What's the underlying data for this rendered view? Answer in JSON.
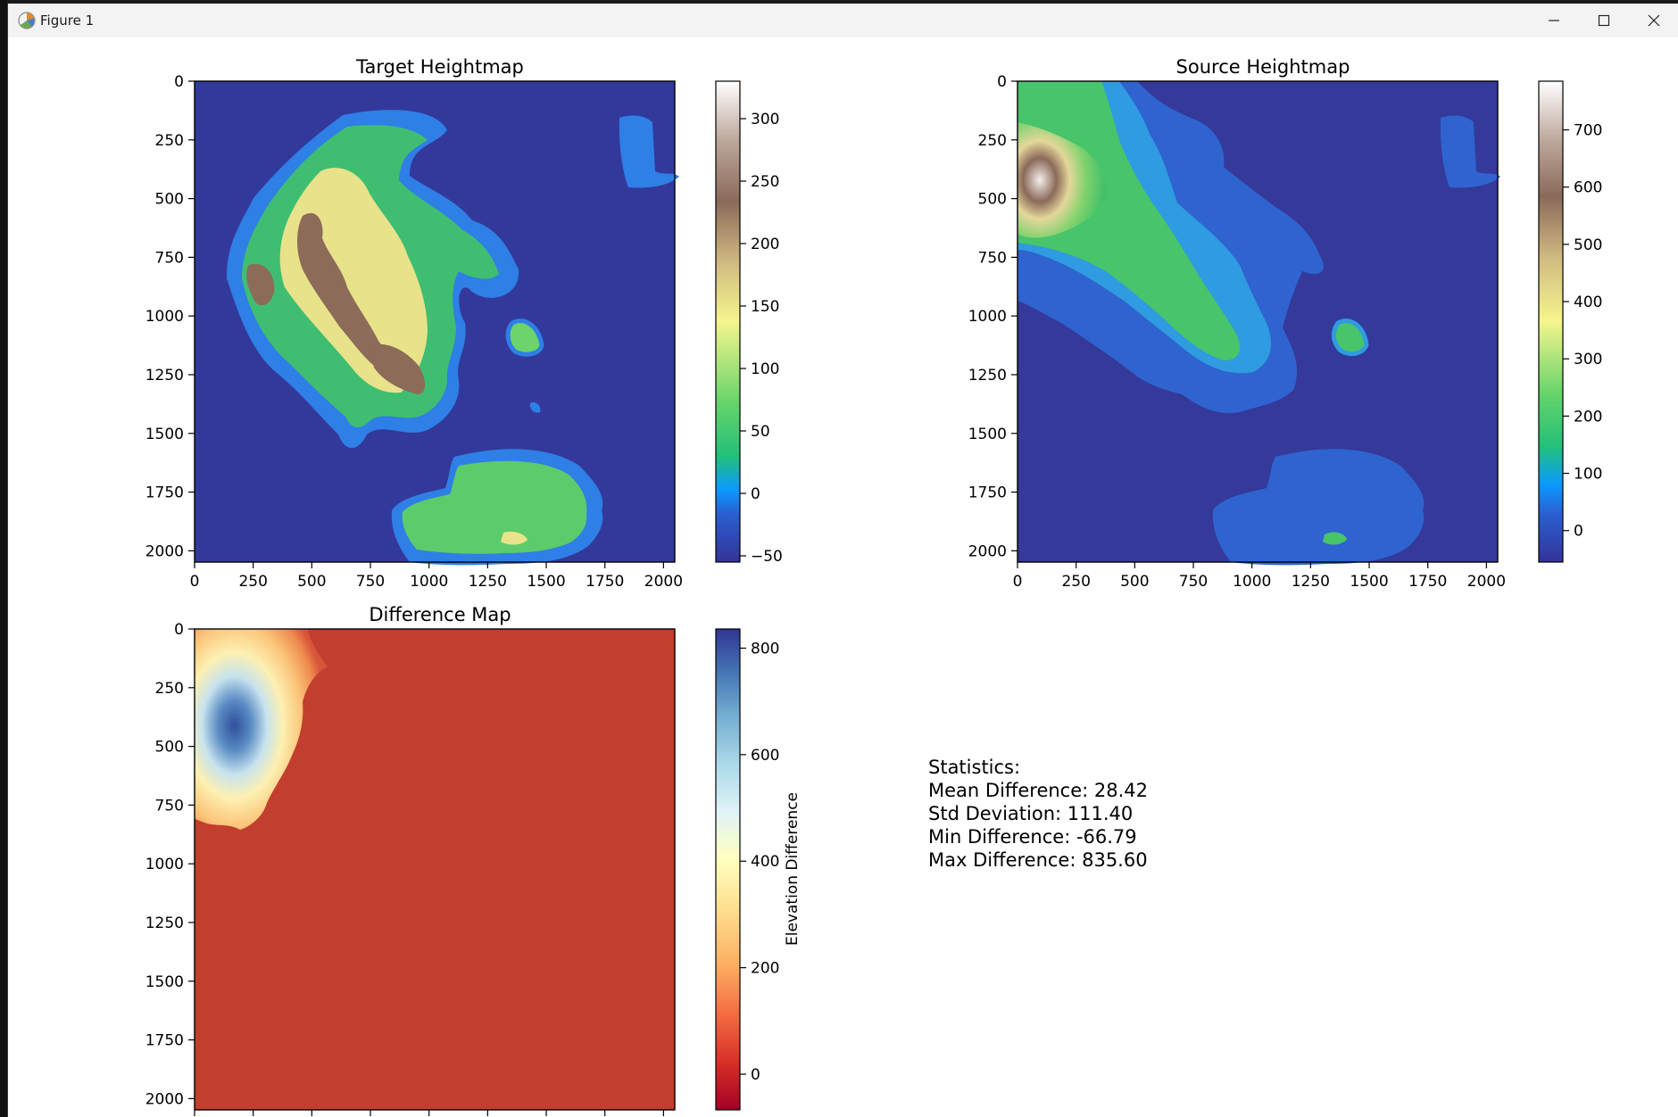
{
  "window": {
    "title": "Figure 1",
    "controls": {
      "minimize": "minimize",
      "maximize": "maximize",
      "close": "close"
    }
  },
  "figure": {
    "statistics": {
      "heading": "Statistics:",
      "mean": "Mean Difference: 28.42",
      "std": "Std Deviation: 111.40",
      "min": "Min Difference: -66.79",
      "max": "Max Difference: 835.60"
    }
  },
  "chart_data": [
    {
      "type": "heatmap",
      "title": "Target Heightmap",
      "xlabel": "",
      "ylabel": "",
      "x_ticks": [
        0,
        250,
        500,
        750,
        1000,
        1250,
        1500,
        1750,
        2000
      ],
      "y_ticks": [
        0,
        250,
        500,
        750,
        1000,
        1250,
        1500,
        1750,
        2000
      ],
      "xlim": [
        0,
        2048
      ],
      "ylim": [
        2048,
        0
      ],
      "colormap": "terrain",
      "colorbar": {
        "range": [
          -55,
          330
        ],
        "ticks": [
          -50,
          0,
          50,
          100,
          150,
          200,
          250,
          300
        ],
        "label": ""
      }
    },
    {
      "type": "heatmap",
      "title": "Source Heightmap",
      "xlabel": "",
      "ylabel": "",
      "x_ticks": [
        0,
        250,
        500,
        750,
        1000,
        1250,
        1500,
        1750,
        2000
      ],
      "y_ticks": [
        0,
        250,
        500,
        750,
        1000,
        1250,
        1500,
        1750,
        2000
      ],
      "xlim": [
        0,
        2048
      ],
      "ylim": [
        2048,
        0
      ],
      "colormap": "terrain",
      "colorbar": {
        "range": [
          -55,
          785
        ],
        "ticks": [
          0,
          100,
          200,
          300,
          400,
          500,
          600,
          700
        ],
        "label": ""
      }
    },
    {
      "type": "heatmap",
      "title": "Difference Map",
      "xlabel": "",
      "ylabel": "",
      "x_ticks": [],
      "y_ticks": [
        0,
        250,
        500,
        750,
        1000,
        1250,
        1500,
        1750,
        2000
      ],
      "xlim": [
        0,
        2048
      ],
      "ylim": [
        2048,
        0
      ],
      "colormap": "RdYlBu",
      "colorbar": {
        "range": [
          -67,
          836
        ],
        "ticks": [
          0,
          200,
          400,
          600,
          800
        ],
        "label": "Elevation Difference"
      }
    }
  ],
  "colors": {
    "ocean_target": "#33399a",
    "ocean_source": "#34399a",
    "diff_background": "#c23e2e"
  }
}
